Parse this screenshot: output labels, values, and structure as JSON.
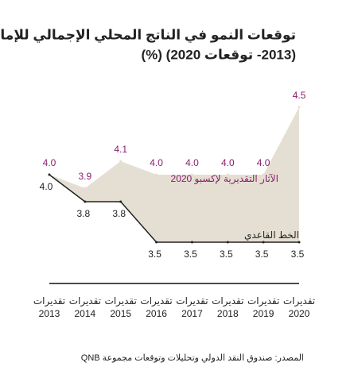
{
  "chart_data": {
    "type": "area-band",
    "title": [
      "توقعات النمو في الناتج المحلي الإجمالي للإمارات",
      "(2013- توقعات 2020) (%)"
    ],
    "categories": [
      "2013",
      "2014",
      "2015",
      "2016",
      "2017",
      "2018",
      "2019",
      "2020"
    ],
    "category_notes": [
      "تقديرات",
      "تقديرات",
      "تقديرات",
      "تقديرات",
      "تقديرات",
      "تقديرات",
      "تقديرات",
      "تقديرات"
    ],
    "series": [
      {
        "name": "الآثار التقديرية لإكسبو 2020",
        "color": "#8a1f6e",
        "values": [
          4.0,
          3.9,
          4.1,
          4.0,
          4.0,
          4.0,
          4.0,
          4.5
        ],
        "value_labels": [
          "4.0",
          "3.9",
          "4.1",
          "4.0",
          "4.0",
          "4.0",
          "4.0",
          "4.5"
        ]
      },
      {
        "name": "الخط القاعدي",
        "color": "#222222",
        "values": [
          4.0,
          3.8,
          3.8,
          3.5,
          3.5,
          3.5,
          3.5,
          3.5
        ],
        "value_labels": [
          "4.0",
          "3.8",
          "3.8",
          "3.5",
          "3.5",
          "3.5",
          "3.5",
          "3.5"
        ]
      }
    ],
    "fill_color": "#e4dfd2",
    "source": "المصدر: صندوق النقد الدولي وتحليلات وتوقعات مجموعة QNB"
  }
}
